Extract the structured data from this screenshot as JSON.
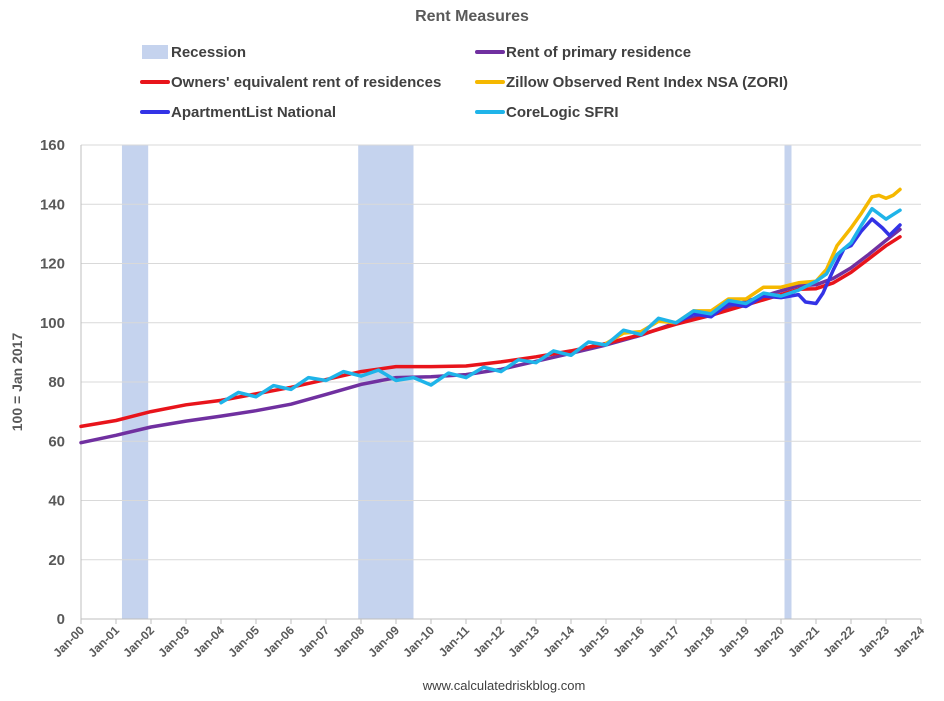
{
  "chart_data": {
    "type": "line",
    "title": "Rent Measures",
    "ylabel": "100 = Jan 2017",
    "xlabel": "",
    "source": "www.calculatedriskblog.com",
    "ylim": [
      0,
      160
    ],
    "yticks": [
      0,
      20,
      40,
      60,
      80,
      100,
      120,
      140,
      160
    ],
    "xlim": [
      2000,
      2024
    ],
    "xticks": [
      {
        "x": 2000,
        "label": "Jan-00"
      },
      {
        "x": 2001,
        "label": "Jan-01"
      },
      {
        "x": 2002,
        "label": "Jan-02"
      },
      {
        "x": 2003,
        "label": "Jan-03"
      },
      {
        "x": 2004,
        "label": "Jan-04"
      },
      {
        "x": 2005,
        "label": "Jan-05"
      },
      {
        "x": 2006,
        "label": "Jan-06"
      },
      {
        "x": 2007,
        "label": "Jan-07"
      },
      {
        "x": 2008,
        "label": "Jan-08"
      },
      {
        "x": 2009,
        "label": "Jan-09"
      },
      {
        "x": 2010,
        "label": "Jan-10"
      },
      {
        "x": 2011,
        "label": "Jan-11"
      },
      {
        "x": 2012,
        "label": "Jan-12"
      },
      {
        "x": 2013,
        "label": "Jan-13"
      },
      {
        "x": 2014,
        "label": "Jan-14"
      },
      {
        "x": 2015,
        "label": "Jan-15"
      },
      {
        "x": 2016,
        "label": "Jan-16"
      },
      {
        "x": 2017,
        "label": "Jan-17"
      },
      {
        "x": 2018,
        "label": "Jan-18"
      },
      {
        "x": 2019,
        "label": "Jan-19"
      },
      {
        "x": 2020,
        "label": "Jan-20"
      },
      {
        "x": 2021,
        "label": "Jan-21"
      },
      {
        "x": 2022,
        "label": "Jan-22"
      },
      {
        "x": 2023,
        "label": "Jan-23"
      },
      {
        "x": 2024,
        "label": "Jan-24"
      }
    ],
    "grid": "horizontal",
    "legend_position": "top",
    "recessions": [
      {
        "start": 2001.17,
        "end": 2001.92
      },
      {
        "start": 2007.92,
        "end": 2009.5
      },
      {
        "start": 2020.1,
        "end": 2020.3
      }
    ],
    "recession_legend": {
      "name": "Recession",
      "color": "#c5d3ee"
    },
    "series": [
      {
        "name": "Rent of primary residence",
        "color": "#7030a0",
        "points": [
          [
            2000,
            59.5
          ],
          [
            2001,
            62
          ],
          [
            2002,
            64.8
          ],
          [
            2003,
            66.8
          ],
          [
            2004,
            68.5
          ],
          [
            2005,
            70.3
          ],
          [
            2006,
            72.5
          ],
          [
            2007,
            75.8
          ],
          [
            2008,
            79.2
          ],
          [
            2009,
            81.5
          ],
          [
            2010,
            81.8
          ],
          [
            2011,
            82.5
          ],
          [
            2012,
            84.3
          ],
          [
            2013,
            87
          ],
          [
            2014,
            89.7
          ],
          [
            2015,
            92.5
          ],
          [
            2016,
            95.8
          ],
          [
            2017,
            100
          ],
          [
            2018,
            103.5
          ],
          [
            2019,
            107.2
          ],
          [
            2020,
            110.8
          ],
          [
            2020.5,
            112.5
          ],
          [
            2021,
            112.8
          ],
          [
            2021.5,
            115
          ],
          [
            2022,
            118.5
          ],
          [
            2022.5,
            123
          ],
          [
            2023,
            127.8
          ],
          [
            2023.4,
            131.5
          ]
        ]
      },
      {
        "name": "Owners' equivalent rent of residences",
        "color": "#e8141b",
        "points": [
          [
            2000,
            65
          ],
          [
            2001,
            67
          ],
          [
            2002,
            70
          ],
          [
            2003,
            72.3
          ],
          [
            2004,
            73.8
          ],
          [
            2005,
            76
          ],
          [
            2006,
            78.2
          ],
          [
            2007,
            80.8
          ],
          [
            2008,
            83.5
          ],
          [
            2009,
            85.2
          ],
          [
            2010,
            85.2
          ],
          [
            2011,
            85.4
          ],
          [
            2012,
            86.8
          ],
          [
            2013,
            88.5
          ],
          [
            2014,
            90.5
          ],
          [
            2015,
            93
          ],
          [
            2016,
            96
          ],
          [
            2017,
            99.5
          ],
          [
            2018,
            102.5
          ],
          [
            2019,
            106
          ],
          [
            2020,
            109.5
          ],
          [
            2020.5,
            111.3
          ],
          [
            2021,
            111.5
          ],
          [
            2021.5,
            113.5
          ],
          [
            2022,
            117
          ],
          [
            2022.5,
            121.5
          ],
          [
            2023,
            126
          ],
          [
            2023.4,
            129
          ]
        ]
      },
      {
        "name": "Zillow Observed Rent Index NSA (ZORI)",
        "color": "#f5b800",
        "points": [
          [
            2015,
            93
          ],
          [
            2015.5,
            96.5
          ],
          [
            2016,
            97
          ],
          [
            2016.5,
            100.5
          ],
          [
            2017,
            100
          ],
          [
            2017.5,
            104
          ],
          [
            2018,
            104
          ],
          [
            2018.5,
            108
          ],
          [
            2019,
            108
          ],
          [
            2019.5,
            112
          ],
          [
            2020,
            112
          ],
          [
            2020.5,
            113.5
          ],
          [
            2021,
            114
          ],
          [
            2021.3,
            118
          ],
          [
            2021.6,
            126
          ],
          [
            2022,
            132
          ],
          [
            2022.3,
            137
          ],
          [
            2022.6,
            142.5
          ],
          [
            2022.8,
            143
          ],
          [
            2023,
            142
          ],
          [
            2023.2,
            143
          ],
          [
            2023.4,
            145
          ]
        ]
      },
      {
        "name": "ApartmentList National",
        "color": "#3333e6",
        "points": [
          [
            2017,
            100
          ],
          [
            2017.5,
            103
          ],
          [
            2018,
            102
          ],
          [
            2018.5,
            106.5
          ],
          [
            2019,
            105.5
          ],
          [
            2019.5,
            109
          ],
          [
            2020,
            108.5
          ],
          [
            2020.5,
            109.5
          ],
          [
            2020.7,
            107
          ],
          [
            2021,
            106.5
          ],
          [
            2021.2,
            110
          ],
          [
            2021.5,
            118
          ],
          [
            2021.8,
            125
          ],
          [
            2022,
            126
          ],
          [
            2022.3,
            131
          ],
          [
            2022.6,
            135
          ],
          [
            2022.9,
            132
          ],
          [
            2023.1,
            129.5
          ],
          [
            2023.4,
            133
          ]
        ]
      },
      {
        "name": "CoreLogic SFRI",
        "color": "#1fb4e9",
        "points": [
          [
            2004,
            73
          ],
          [
            2004.5,
            76.5
          ],
          [
            2005,
            75
          ],
          [
            2005.5,
            78.8
          ],
          [
            2006,
            77.5
          ],
          [
            2006.5,
            81.5
          ],
          [
            2007,
            80.5
          ],
          [
            2007.5,
            83.5
          ],
          [
            2008,
            82
          ],
          [
            2008.5,
            84
          ],
          [
            2009,
            80.5
          ],
          [
            2009.5,
            81.5
          ],
          [
            2010,
            79
          ],
          [
            2010.5,
            83
          ],
          [
            2011,
            81.5
          ],
          [
            2011.5,
            85
          ],
          [
            2012,
            83.5
          ],
          [
            2012.5,
            87.5
          ],
          [
            2013,
            86.5
          ],
          [
            2013.5,
            90.5
          ],
          [
            2014,
            89
          ],
          [
            2014.5,
            93.5
          ],
          [
            2015,
            92.5
          ],
          [
            2015.5,
            97.5
          ],
          [
            2016,
            96
          ],
          [
            2016.5,
            101.5
          ],
          [
            2017,
            100
          ],
          [
            2017.5,
            104
          ],
          [
            2018,
            103
          ],
          [
            2018.5,
            107.5
          ],
          [
            2019,
            106.5
          ],
          [
            2019.5,
            110
          ],
          [
            2020,
            109
          ],
          [
            2020.5,
            111
          ],
          [
            2021,
            114
          ],
          [
            2021.3,
            116.5
          ],
          [
            2021.6,
            123
          ],
          [
            2022,
            127
          ],
          [
            2022.3,
            133
          ],
          [
            2022.6,
            138.5
          ],
          [
            2023,
            135
          ],
          [
            2023.4,
            138
          ]
        ]
      }
    ]
  }
}
